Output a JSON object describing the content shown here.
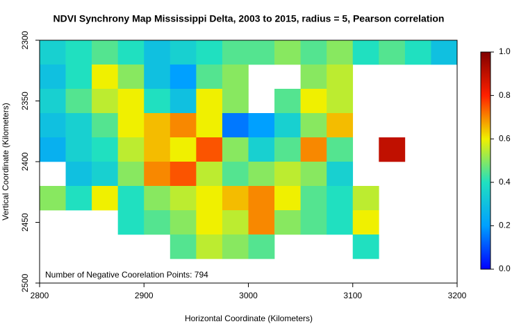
{
  "chart_data": {
    "type": "heatmap",
    "title": "NDVI Synchrony Map Mississippi Delta, 2003 to 2015, radius = 5, Pearson correlation",
    "xlabel": "Horizontal Coordinate (Kilometers)",
    "ylabel": "Vertical Coordinate (Kilometers)",
    "annotation": "Number of Negative Coorelation Points: 794",
    "xlim": [
      2800,
      3200
    ],
    "xticks": [
      2800,
      2900,
      3000,
      3100,
      3200
    ],
    "ylim": [
      2300,
      2500
    ],
    "yticks": [
      2300,
      2350,
      2400,
      2450,
      2500
    ],
    "y_reversed": true,
    "x_edges": [
      2800,
      2825,
      2850,
      2875,
      2900,
      2925,
      2950,
      2975,
      3000,
      3025,
      3050,
      3075,
      3100,
      3125,
      3150,
      3175,
      3200
    ],
    "y_edges": [
      2300,
      2320,
      2340,
      2360,
      2380,
      2400,
      2420,
      2440,
      2460,
      2480,
      2500
    ],
    "z": [
      [
        0.35,
        0.4,
        0.45,
        0.4,
        0.3,
        0.35,
        0.4,
        0.45,
        0.45,
        0.5,
        0.45,
        0.5,
        0.4,
        0.45,
        0.4,
        0.3
      ],
      [
        0.3,
        0.4,
        0.6,
        0.5,
        0.3,
        0.2,
        0.45,
        0.5,
        null,
        null,
        0.5,
        0.55,
        null,
        null,
        null,
        null
      ],
      [
        0.35,
        0.45,
        0.55,
        0.6,
        0.4,
        0.3,
        0.6,
        0.5,
        null,
        0.45,
        0.6,
        0.55,
        null,
        null,
        null,
        null
      ],
      [
        0.3,
        0.35,
        0.45,
        0.6,
        0.65,
        0.7,
        0.6,
        0.15,
        0.2,
        0.35,
        0.5,
        0.65,
        null,
        null,
        null,
        null
      ],
      [
        0.25,
        0.35,
        0.4,
        0.55,
        0.65,
        0.6,
        0.75,
        0.5,
        0.35,
        0.45,
        0.7,
        0.45,
        null,
        0.9,
        null,
        null
      ],
      [
        null,
        0.3,
        0.35,
        0.5,
        0.7,
        0.75,
        0.55,
        0.45,
        0.5,
        0.55,
        0.5,
        0.35,
        null,
        null,
        null,
        null
      ],
      [
        0.5,
        0.4,
        0.6,
        0.4,
        0.5,
        0.55,
        0.6,
        0.65,
        0.7,
        0.6,
        0.45,
        0.4,
        0.55,
        null,
        null,
        null
      ],
      [
        null,
        null,
        null,
        0.4,
        0.45,
        0.5,
        0.6,
        0.55,
        0.7,
        0.5,
        0.45,
        0.4,
        0.6,
        null,
        null,
        null
      ],
      [
        null,
        null,
        null,
        null,
        null,
        0.45,
        0.55,
        0.5,
        0.45,
        null,
        null,
        null,
        0.4,
        null,
        null,
        null
      ],
      [
        null,
        null,
        null,
        null,
        null,
        null,
        null,
        null,
        null,
        null,
        null,
        null,
        null,
        null,
        null,
        null
      ]
    ],
    "colorbar_lim": [
      0,
      1
    ],
    "colorbar_ticks": [
      {
        "value": 0,
        "label": "0.0"
      },
      {
        "value": 0.2,
        "label": "0.2"
      },
      {
        "value": 0.4,
        "label": "0.4"
      },
      {
        "value": 0.6,
        "label": "0.6"
      },
      {
        "value": 0.8,
        "label": "0.8"
      },
      {
        "value": 1,
        "label": "1.0"
      }
    ],
    "colors": [
      "#0000ff",
      "#00a0ff",
      "#20e0c0",
      "#f0f000",
      "#ff2000",
      "#800000"
    ]
  }
}
